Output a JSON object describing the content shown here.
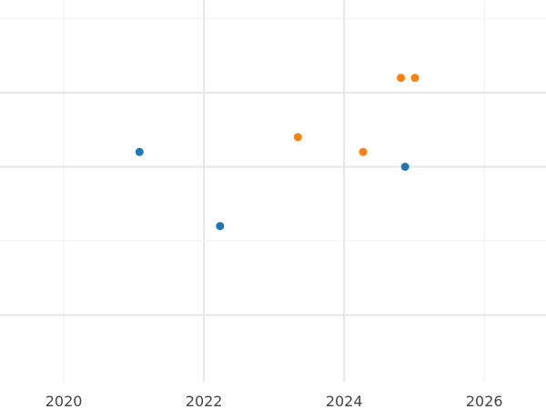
{
  "chart_data": {
    "type": "scatter",
    "title": "",
    "xlabel": "",
    "ylabel": "",
    "x_ticks": [
      "2020",
      "2022",
      "2024",
      "2026"
    ],
    "x_tick_values": [
      2020,
      2022,
      2024,
      2026
    ],
    "xlim": [
      2019.09,
      2026.88
    ],
    "ylim": [
      -0.9,
      4.25
    ],
    "y_grid_values": [
      0,
      1,
      2,
      3,
      4
    ],
    "y_ticks_shown": false,
    "grid": true,
    "legend": "none",
    "series": [
      {
        "color": "#1f77b4",
        "points": [
          {
            "x": 2021.08,
            "y": 2.2
          },
          {
            "x": 2022.23,
            "y": 1.2
          },
          {
            "x": 2024.87,
            "y": 2.0
          }
        ]
      },
      {
        "color": "#ff7f0e",
        "points": [
          {
            "x": 2023.34,
            "y": 2.4
          },
          {
            "x": 2024.27,
            "y": 2.2
          },
          {
            "x": 2024.81,
            "y": 3.2
          },
          {
            "x": 2025.01,
            "y": 3.2
          }
        ]
      }
    ]
  }
}
